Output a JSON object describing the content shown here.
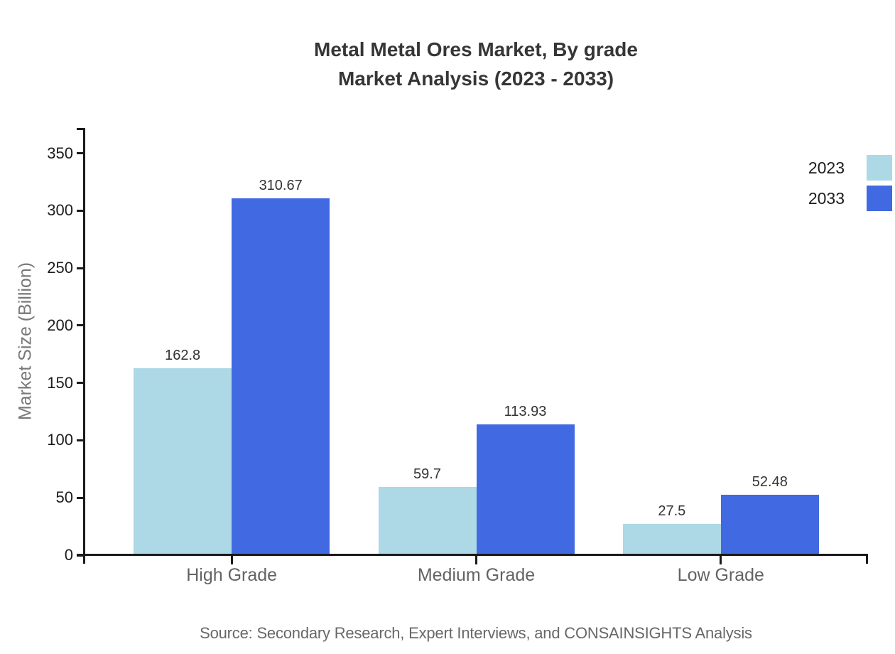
{
  "title": {
    "line1": "Metal Metal Ores Market, By grade",
    "line2": "Market Analysis (2023 - 2033)"
  },
  "source": {
    "text": "Source: Secondary Research, Expert Interviews, and CONSAINSIGHTS Analysis"
  },
  "legend": [
    {
      "label": "2023",
      "color": "#ADD8E6"
    },
    {
      "label": "2033",
      "color": "#4169E1"
    }
  ],
  "chart_data": {
    "type": "bar",
    "title": "Metal Metal Ores Market, By grade Market Analysis (2023 - 2033)",
    "categories": [
      "High Grade",
      "Medium Grade",
      "Low Grade"
    ],
    "series": [
      {
        "name": "2023",
        "color": "#ADD8E6",
        "values": [
          162.8,
          59.7,
          27.5
        ]
      },
      {
        "name": "2033",
        "color": "#4169E1",
        "values": [
          310.67,
          113.93,
          52.48
        ]
      }
    ],
    "xlabel": "",
    "ylabel": "Market Size (Billion)",
    "ylim": [
      0,
      372
    ],
    "yticks": [
      0,
      50,
      100,
      150,
      200,
      250,
      300,
      350
    ],
    "grid": false,
    "legend_position": "top-right",
    "value_labels": true,
    "axis_color": "#1a1a1a"
  }
}
